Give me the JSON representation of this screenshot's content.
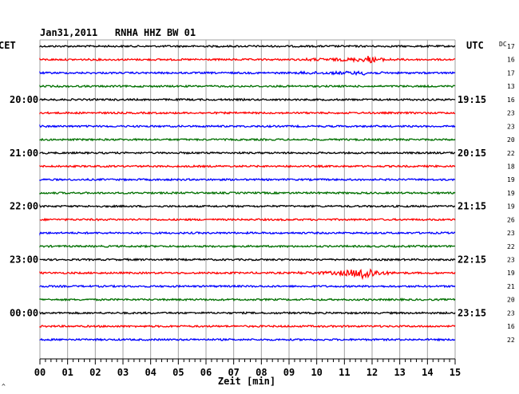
{
  "chart_data": {
    "type": "line",
    "title": "Jan31,2011   RNHA HHZ BW 01",
    "left_tz_label": "CET",
    "right_tz_label": "UTC",
    "dc_label": "DC",
    "xlabel": "Zeit [min]",
    "xlim": [
      0,
      15
    ],
    "x_ticks": [
      "00",
      "01",
      "02",
      "03",
      "04",
      "05",
      "06",
      "07",
      "08",
      "09",
      "10",
      "11",
      "12",
      "13",
      "14",
      "15"
    ],
    "grid": true,
    "trace_colors": [
      "#000000",
      "#ff0000",
      "#0000ff",
      "#007000"
    ],
    "left_hour_labels": [
      {
        "trace": 4,
        "label": "20:00"
      },
      {
        "trace": 8,
        "label": "21:00"
      },
      {
        "trace": 12,
        "label": "22:00"
      },
      {
        "trace": 16,
        "label": "23:00"
      },
      {
        "trace": 20,
        "label": "00:00"
      }
    ],
    "right_hour_labels": [
      {
        "trace": 4,
        "label": "19:15"
      },
      {
        "trace": 8,
        "label": "20:15"
      },
      {
        "trace": 12,
        "label": "21:15"
      },
      {
        "trace": 16,
        "label": "22:15"
      },
      {
        "trace": 20,
        "label": "23:15"
      }
    ],
    "dc_values": [
      "17",
      "16",
      "17",
      "13",
      "16",
      "23",
      "23",
      "20",
      "22",
      "18",
      "19",
      "19",
      "19",
      "26",
      "23",
      "22",
      "23",
      "19",
      "21",
      "20",
      "23",
      "16",
      "22"
    ],
    "traces": [
      {
        "events": []
      },
      {
        "events": [
          {
            "minute": 11.85,
            "amp": 4
          }
        ]
      },
      {
        "events": [
          {
            "minute": 11.6,
            "amp": 2
          }
        ]
      },
      {
        "events": []
      },
      {
        "events": []
      },
      {
        "events": []
      },
      {
        "events": []
      },
      {
        "events": []
      },
      {
        "events": []
      },
      {
        "events": []
      },
      {
        "events": []
      },
      {
        "events": []
      },
      {
        "events": []
      },
      {
        "events": []
      },
      {
        "events": []
      },
      {
        "events": []
      },
      {
        "events": []
      },
      {
        "events": [
          {
            "minute": 11.6,
            "amp": 13
          }
        ]
      },
      {
        "events": []
      },
      {
        "events": []
      },
      {
        "events": []
      },
      {
        "events": []
      },
      {
        "events": []
      }
    ],
    "bottom_mark": "^"
  }
}
